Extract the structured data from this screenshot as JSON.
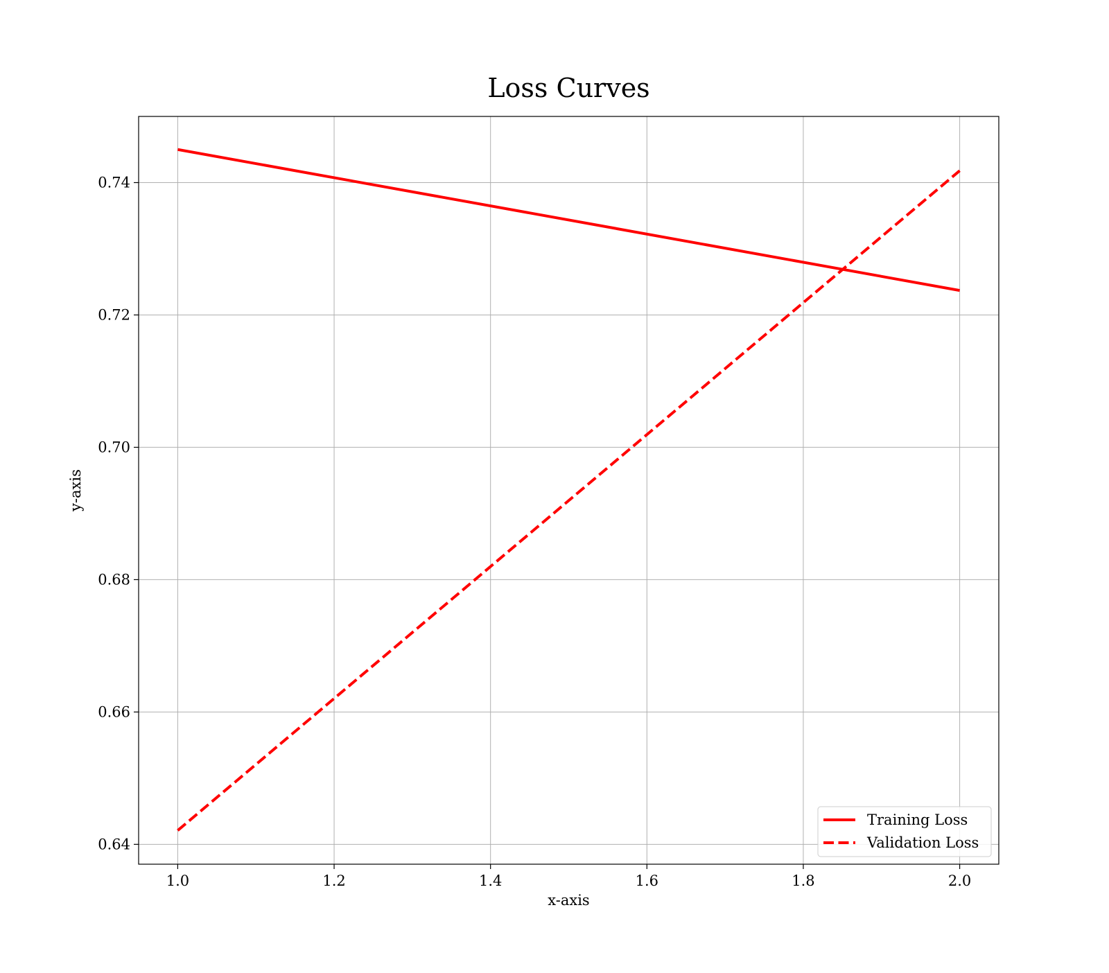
{
  "chart_data": {
    "type": "line",
    "title": "Loss Curves",
    "xlabel": "x-axis",
    "ylabel": "y-axis",
    "xlim": [
      0.95,
      2.05
    ],
    "ylim": [
      0.637,
      0.75
    ],
    "xticks": [
      1.0,
      1.2,
      1.4,
      1.6,
      1.8,
      2.0
    ],
    "xtick_labels": [
      "1.0",
      "1.2",
      "1.4",
      "1.6",
      "1.8",
      "2.0"
    ],
    "yticks": [
      0.64,
      0.66,
      0.68,
      0.7,
      0.72,
      0.74
    ],
    "ytick_labels": [
      "0.64",
      "0.66",
      "0.68",
      "0.70",
      "0.72",
      "0.74"
    ],
    "grid": true,
    "legend_position": "lower-right",
    "series": [
      {
        "name": "Training Loss",
        "x": [
          1.0,
          2.0
        ],
        "y": [
          0.745,
          0.7237
        ],
        "color": "#ff0000",
        "linestyle": "solid"
      },
      {
        "name": "Validation Loss",
        "x": [
          1.0,
          2.0
        ],
        "y": [
          0.6421,
          0.7418
        ],
        "color": "#ff0000",
        "linestyle": "dashed"
      }
    ]
  }
}
